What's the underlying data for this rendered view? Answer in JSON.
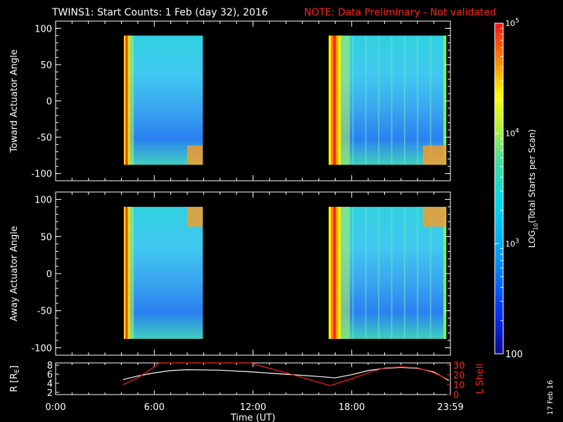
{
  "title": {
    "main": "TWINS1: Start Counts:  1 Feb (day  32), 2016",
    "note": "NOTE: Data Preliminary - Not validated",
    "note_color": "#ff2020"
  },
  "generated": "17 Feb 16",
  "chart_data": [
    {
      "type": "heatmap",
      "panel": "toward",
      "ylabel": "Toward Actuator Angle",
      "ylim": [
        -110,
        110
      ],
      "yticks": [
        100,
        50,
        0,
        -50,
        -100
      ],
      "y_range_data": [
        -88,
        90
      ],
      "segments_hours": [
        [
          4.15,
          8.95
        ],
        [
          16.6,
          23.75
        ]
      ],
      "colorbar": {
        "label": "LOG10(Total Starts per Scan)",
        "scale": "log",
        "range": [
          100,
          100000
        ],
        "tick_labels": [
          "100",
          "10^3",
          "10^4",
          "10^5"
        ],
        "colormap": "rainbow (blue-cyan-green-yellow-red)"
      }
    },
    {
      "type": "heatmap",
      "panel": "away",
      "ylabel": "Away Actuator Angle",
      "ylim": [
        -110,
        110
      ],
      "yticks": [
        100,
        50,
        0,
        -50,
        -100
      ],
      "y_range_data": [
        -88,
        90
      ],
      "segments_hours": [
        [
          4.15,
          8.95
        ],
        [
          16.6,
          23.75
        ]
      ]
    },
    {
      "type": "line",
      "panel": "orbit",
      "xlabel": "Time (UT)",
      "xticks": [
        "0:00",
        "6:00",
        "12:00",
        "18:00",
        "23:59"
      ],
      "xlim_hours": [
        0,
        24
      ],
      "left_axis": {
        "label": "R [RE]",
        "ticks": [
          2,
          4,
          6,
          8
        ],
        "ylim": [
          1.5,
          8.5
        ]
      },
      "right_axis": {
        "label": "L Shell",
        "ticks": [
          0,
          10,
          20,
          30
        ],
        "ylim": [
          0,
          32
        ],
        "color": "#ff2020"
      },
      "series": [
        {
          "name": "R",
          "color": "#ffffff",
          "axis": "left",
          "x": [
            4.1,
            5,
            6,
            7,
            8,
            10,
            12,
            14,
            16,
            17,
            18,
            19,
            20,
            21,
            22,
            23,
            23.9
          ],
          "y": [
            4.8,
            5.6,
            6.3,
            6.8,
            7.0,
            6.9,
            6.5,
            6.0,
            5.5,
            5.2,
            5.9,
            6.8,
            7.3,
            7.5,
            7.3,
            6.5,
            4.6
          ]
        },
        {
          "name": "L Shell",
          "color": "#ff2020",
          "axis": "right",
          "x": [
            4.1,
            5,
            6,
            6.3,
            11.9,
            12.0,
            14,
            16.5,
            16.7,
            18,
            19,
            20,
            21,
            22,
            23,
            23.9
          ],
          "y": [
            10,
            17,
            28,
            32,
            32,
            31,
            22,
            10,
            9,
            16,
            22,
            27,
            28,
            27,
            22,
            15
          ]
        }
      ]
    }
  ]
}
